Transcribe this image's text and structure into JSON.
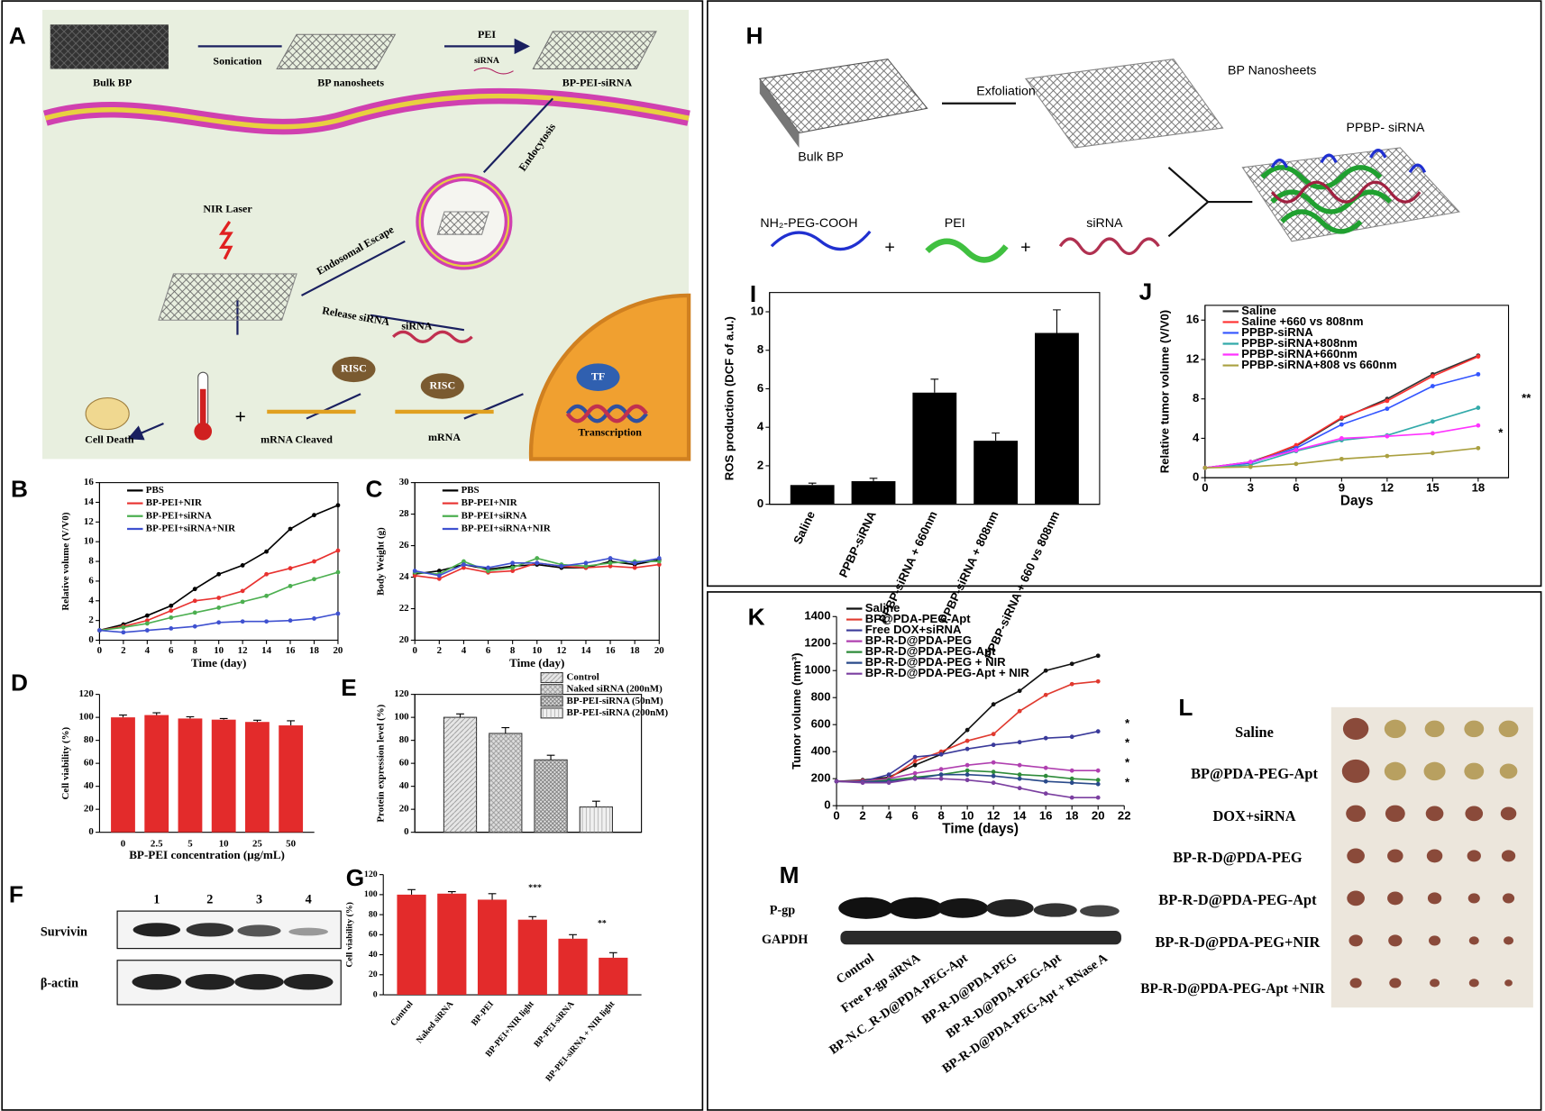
{
  "panel_labels": [
    "A",
    "B",
    "C",
    "D",
    "E",
    "F",
    "G",
    "H",
    "I",
    "J",
    "K",
    "L",
    "M"
  ],
  "diagram_a": {
    "labels": [
      "Bulk BP",
      "Sonication",
      "BP nanosheets",
      "PEI",
      "siRNA",
      "BP-PEI-siRNA",
      "Endocytosis",
      "NIR Laser",
      "Endosomal Escape",
      "Release siRNA",
      "siRNA",
      "RISC",
      "RISC",
      "TF",
      "Transcription",
      "mRNA",
      "mRNA Cleaved",
      "Cell Death",
      "+"
    ]
  },
  "diagram_h": {
    "labels": [
      "Exfoliation",
      "BP Nanosheets",
      "Bulk BP",
      "PPBP- siRNA",
      "NH₂-PEG-COOH",
      "+",
      "PEI",
      "+",
      "siRNA"
    ]
  },
  "blot_f": {
    "lanes": [
      "1",
      "2",
      "3",
      "4"
    ],
    "rows": [
      "Survivin",
      "β-actin"
    ]
  },
  "blot_m": {
    "rows": [
      "P-gp",
      "GAPDH"
    ],
    "lanes": [
      "Control",
      "Free P-gp siRNA",
      "BP-N.C_R-D@PDA-PEG-Apt",
      "BP-R-D@PDA-PEG",
      "BP-R-D@PDA-PEG-Apt",
      "BP-R-D@PDA-PEG-Apt + RNase A"
    ]
  },
  "photo_l": {
    "rows": [
      "Saline",
      "BP@PDA-PEG-Apt",
      "DOX+siRNA",
      "BP-R-D@PDA-PEG",
      "BP-R-D@PDA-PEG-Apt",
      "BP-R-D@PDA-PEG+NIR",
      "BP-R-D@PDA-PEG-Apt +NIR"
    ]
  },
  "chart_data": [
    {
      "type": "line",
      "xlabel": "Time (day)",
      "ylabel": "Relative volume (V/V0)",
      "x": [
        0,
        2,
        4,
        6,
        8,
        10,
        12,
        14,
        16,
        18,
        20
      ],
      "xlim": [
        0,
        20
      ],
      "xticks": [
        0,
        2,
        4,
        6,
        8,
        10,
        12,
        14,
        16,
        18,
        20
      ],
      "ylim": [
        0,
        16
      ],
      "yticks": [
        0,
        2,
        4,
        6,
        8,
        10,
        12,
        14,
        16
      ],
      "series": [
        {
          "name": "PBS",
          "color": "#000000",
          "values": [
            1,
            1.6,
            2.5,
            3.5,
            5.2,
            6.7,
            7.6,
            9,
            11.3,
            12.7,
            13.7
          ]
        },
        {
          "name": "BP-PEI+NIR",
          "color": "#e8312f",
          "values": [
            1,
            1.4,
            2,
            3,
            4,
            4.3,
            5,
            6.7,
            7.3,
            8,
            9.1
          ]
        },
        {
          "name": "BP-PEI+siRNA",
          "color": "#4caf50",
          "values": [
            1,
            1.3,
            1.7,
            2.3,
            2.8,
            3.3,
            3.9,
            4.5,
            5.5,
            6.2,
            6.9
          ]
        },
        {
          "name": "BP-PEI+siRNA+NIR",
          "color": "#3f51d0",
          "values": [
            1,
            0.8,
            1,
            1.2,
            1.4,
            1.8,
            1.9,
            1.9,
            2,
            2.2,
            2.7
          ]
        }
      ]
    },
    {
      "type": "line",
      "xlabel": "Time (day)",
      "ylabel": "Body Weight (g)",
      "x": [
        0,
        2,
        4,
        6,
        8,
        10,
        12,
        14,
        16,
        18,
        20
      ],
      "xlim": [
        0,
        20
      ],
      "xticks": [
        0,
        2,
        4,
        6,
        8,
        10,
        12,
        14,
        16,
        18,
        20
      ],
      "ylim": [
        20,
        30
      ],
      "yticks": [
        20,
        22,
        24,
        26,
        28,
        30
      ],
      "series": [
        {
          "name": "PBS",
          "color": "#000000",
          "values": [
            24.2,
            24.4,
            24.8,
            24.5,
            24.7,
            24.8,
            24.6,
            24.6,
            25,
            24.8,
            25.1
          ]
        },
        {
          "name": "BP-PEI+NIR",
          "color": "#e8312f",
          "values": [
            24.1,
            23.9,
            24.6,
            24.3,
            24.4,
            24.9,
            24.7,
            24.6,
            24.7,
            24.6,
            24.8
          ]
        },
        {
          "name": "BP-PEI+siRNA",
          "color": "#4caf50",
          "values": [
            24.3,
            24.2,
            25,
            24.4,
            24.6,
            25.2,
            24.8,
            24.7,
            24.9,
            25,
            25
          ]
        },
        {
          "name": "BP-PEI+siRNA+NIR",
          "color": "#3f51d0",
          "values": [
            24.4,
            24.1,
            24.8,
            24.6,
            24.9,
            24.9,
            24.7,
            24.9,
            25.2,
            24.9,
            25.2
          ]
        }
      ]
    },
    {
      "type": "bar",
      "xlabel": "BP-PEI concentration (μg/mL)",
      "ylabel": "Cell viability (%)",
      "categories": [
        "0",
        "2.5",
        "5",
        "10",
        "25",
        "50"
      ],
      "values": [
        100,
        102,
        99,
        98,
        96,
        93
      ],
      "errors": [
        2,
        2,
        1.5,
        1,
        1.5,
        4
      ],
      "color": "#e32b2b",
      "ylim": [
        0,
        120
      ],
      "yticks": [
        0,
        20,
        40,
        60,
        80,
        100,
        120
      ]
    },
    {
      "type": "bar",
      "ylabel": "Protein expression level (%)",
      "ylim": [
        0,
        120
      ],
      "yticks": [
        0,
        20,
        40,
        60,
        80,
        100,
        120
      ],
      "series": [
        {
          "name": "Control",
          "color": "#e6e6e6",
          "values": [
            100
          ],
          "errors": [
            3
          ]
        },
        {
          "name": "Naked siRNA (200nM)",
          "color": "#dcdcdc",
          "values": [
            86
          ],
          "errors": [
            5
          ]
        },
        {
          "name": "BP-PEI-siRNA (50nM)",
          "color": "#e0e0e0",
          "values": [
            63
          ],
          "errors": [
            4
          ]
        },
        {
          "name": "BP-PEI-siRNA (200nM)",
          "color": "#f0f0f0",
          "values": [
            22
          ],
          "errors": [
            5
          ]
        }
      ]
    },
    {
      "type": "bar",
      "ylabel": "Cell viability (%)",
      "categories": [
        "Control",
        "Naked siRNA",
        "BP-PEI",
        "BP-PEI+NIR light",
        "BP-PEI-siRNA",
        "BP-PEI-siRNA + NIR light"
      ],
      "values": [
        100,
        101,
        95,
        75,
        56,
        37
      ],
      "errors": [
        5,
        2,
        6,
        3,
        4,
        5
      ],
      "color": "#e32b2b",
      "ylim": [
        0,
        120
      ],
      "yticks": [
        0,
        20,
        40,
        60,
        80,
        100,
        120
      ],
      "annotations": [
        "***",
        "**"
      ]
    },
    {
      "type": "bar",
      "ylabel": "ROS production (DCF of a.u.)",
      "categories": [
        "Saline",
        "PPBP-siRNA",
        "PPBP-siRNA + 660nm",
        "PPBP-siRNA + 808nm",
        "PPBP-siRNA + 660 vs 808nm"
      ],
      "values": [
        1,
        1.2,
        5.8,
        3.3,
        8.9
      ],
      "errors": [
        0.1,
        0.15,
        0.7,
        0.4,
        1.2
      ],
      "color": "#000000",
      "ylim": [
        0,
        11
      ],
      "yticks": [
        0,
        2,
        4,
        6,
        8,
        10
      ]
    },
    {
      "type": "line",
      "xlabel": "Days",
      "ylabel": "Relative tumor volume (V/V0)",
      "x": [
        0,
        3,
        6,
        9,
        12,
        15,
        18
      ],
      "xlim": [
        0,
        20
      ],
      "xticks": [
        0,
        3,
        6,
        9,
        12,
        15,
        18
      ],
      "ylim": [
        0,
        17.5
      ],
      "yticks": [
        0,
        4,
        8,
        12,
        16
      ],
      "annotations": [
        "**",
        "*"
      ],
      "series": [
        {
          "name": "Saline",
          "color": "#333333",
          "values": [
            1,
            1.6,
            3.2,
            6,
            8,
            10.5,
            12.4
          ]
        },
        {
          "name": "Saline +660 vs 808nm",
          "color": "#ff3030",
          "values": [
            1,
            1.5,
            3.3,
            6.1,
            7.8,
            10.3,
            12.3
          ]
        },
        {
          "name": "PPBP-siRNA",
          "color": "#3355ff",
          "values": [
            1,
            1.5,
            3,
            5.4,
            7,
            9.3,
            10.5
          ]
        },
        {
          "name": "PPBP-siRNA+808nm",
          "color": "#33aaaa",
          "values": [
            1,
            1.3,
            2.7,
            3.8,
            4.3,
            5.7,
            7.1
          ]
        },
        {
          "name": "PPBP-siRNA+660nm",
          "color": "#ff33ff",
          "values": [
            1,
            1.6,
            2.8,
            4,
            4.2,
            4.5,
            5.3
          ]
        },
        {
          "name": "PPBP-siRNA+808 vs 660nm",
          "color": "#aaa040",
          "values": [
            1,
            1.1,
            1.4,
            1.9,
            2.2,
            2.5,
            3
          ]
        }
      ]
    },
    {
      "type": "line",
      "xlabel": "Time (days)",
      "ylabel": "Tumor volume (mm³)",
      "x": [
        0,
        2,
        4,
        6,
        8,
        10,
        12,
        14,
        16,
        18,
        20
      ],
      "xlim": [
        0,
        22
      ],
      "xticks": [
        0,
        2,
        4,
        6,
        8,
        10,
        12,
        14,
        16,
        18,
        20,
        22
      ],
      "ylim": [
        0,
        1400
      ],
      "yticks": [
        0,
        200,
        400,
        600,
        800,
        1000,
        1200,
        1400
      ],
      "annotations": [
        "*",
        "*",
        "*",
        "*"
      ],
      "series": [
        {
          "name": "Saline",
          "color": "#111111",
          "values": [
            180,
            190,
            210,
            300,
            380,
            560,
            750,
            850,
            1000,
            1050,
            1110
          ]
        },
        {
          "name": "BP@PDA-PEG-Apt",
          "color": "#e03a2f",
          "values": [
            180,
            185,
            200,
            330,
            400,
            480,
            530,
            700,
            820,
            900,
            920
          ]
        },
        {
          "name": "Free DOX+siRNA",
          "color": "#3a3a9a",
          "values": [
            180,
            180,
            230,
            360,
            380,
            420,
            450,
            470,
            500,
            510,
            550
          ]
        },
        {
          "name": "BP-R-D@PDA-PEG",
          "color": "#b040b0",
          "values": [
            180,
            180,
            200,
            240,
            270,
            300,
            320,
            300,
            280,
            260,
            260
          ]
        },
        {
          "name": "BP-R-D@PDA-PEG-Apt",
          "color": "#2e8b3a",
          "values": [
            180,
            175,
            190,
            210,
            230,
            260,
            250,
            230,
            220,
            200,
            190
          ]
        },
        {
          "name": "BP-R-D@PDA-PEG + NIR",
          "color": "#2a4a8a",
          "values": [
            180,
            175,
            180,
            200,
            230,
            230,
            220,
            200,
            180,
            170,
            160
          ]
        },
        {
          "name": "BP-R-D@PDA-PEG-Apt + NIR",
          "color": "#7b3fa0",
          "values": [
            180,
            170,
            170,
            200,
            200,
            190,
            170,
            130,
            90,
            60,
            60
          ]
        }
      ]
    }
  ]
}
